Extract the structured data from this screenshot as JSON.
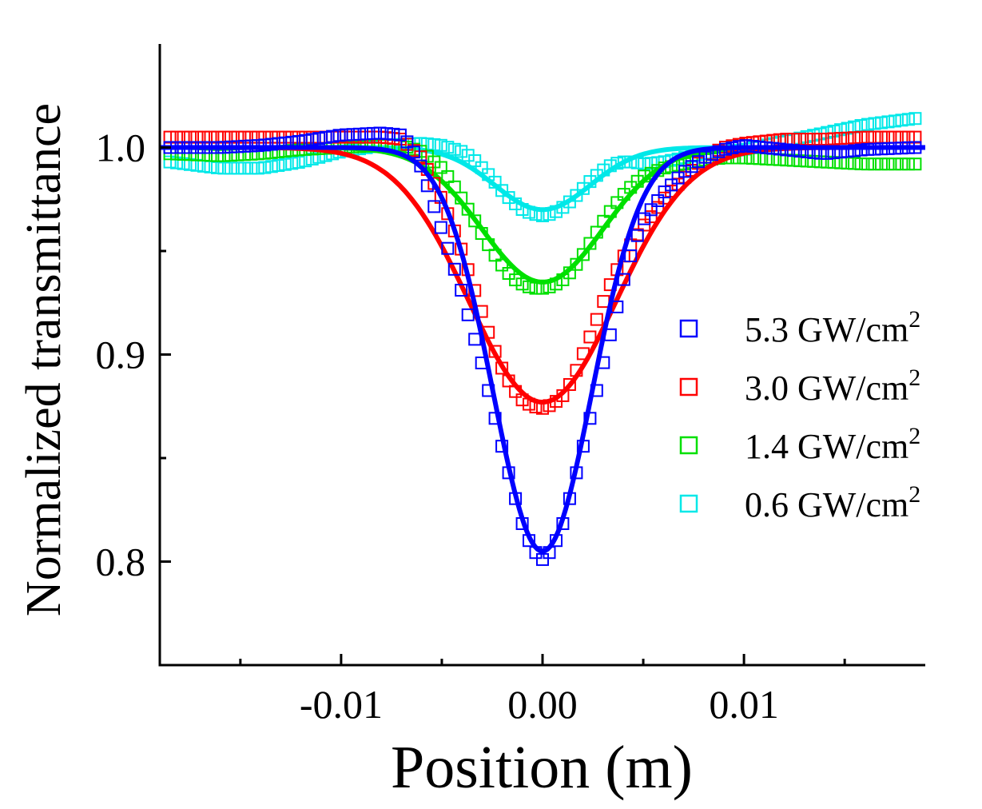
{
  "chart_data": {
    "type": "scatter",
    "title": "",
    "xlabel": "Position (m)",
    "ylabel": "Normalized transmittance",
    "xlim": [
      -0.019,
      0.019
    ],
    "ylim": [
      0.75,
      1.05
    ],
    "x_ticks": [
      {
        "value": -0.01,
        "label": "-0.01"
      },
      {
        "value": 0.0,
        "label": "0.00"
      },
      {
        "value": 0.01,
        "label": "0.01"
      }
    ],
    "y_ticks": [
      {
        "value": 0.8,
        "label": "0.8"
      },
      {
        "value": 0.9,
        "label": "0.9"
      },
      {
        "value": 1.0,
        "label": "1.0"
      }
    ],
    "x_minor_ticks": [
      -0.015,
      -0.005,
      0.005,
      0.015
    ],
    "y_minor_ticks": [
      0.85,
      0.95
    ],
    "grid": false,
    "legend_position": "right",
    "legend_unit": "GW/cm",
    "legend_unit_sup": "2",
    "series": [
      {
        "name": "5.3 GW/cm2",
        "label_value": "5.3",
        "color": "#0000ff",
        "points": [
          [
            -0.0185,
            1.0
          ],
          [
            -0.016,
            1.0
          ],
          [
            -0.014,
            1.001
          ],
          [
            -0.012,
            1.003
          ],
          [
            -0.01,
            1.006
          ],
          [
            -0.008,
            1.007
          ],
          [
            -0.007,
            1.006
          ],
          [
            -0.0065,
            1.0
          ],
          [
            -0.006,
            0.99
          ],
          [
            -0.0055,
            0.975
          ],
          [
            -0.005,
            0.96
          ],
          [
            -0.0045,
            0.945
          ],
          [
            -0.004,
            0.93
          ],
          [
            -0.0035,
            0.912
          ],
          [
            -0.003,
            0.895
          ],
          [
            -0.0025,
            0.875
          ],
          [
            -0.002,
            0.855
          ],
          [
            -0.0015,
            0.836
          ],
          [
            -0.001,
            0.818
          ],
          [
            -0.0005,
            0.806
          ],
          [
            0.0,
            0.801
          ],
          [
            0.0005,
            0.806
          ],
          [
            0.001,
            0.818
          ],
          [
            0.0015,
            0.836
          ],
          [
            0.002,
            0.855
          ],
          [
            0.0025,
            0.875
          ],
          [
            0.003,
            0.895
          ],
          [
            0.0035,
            0.915
          ],
          [
            0.004,
            0.935
          ],
          [
            0.0045,
            0.952
          ],
          [
            0.005,
            0.965
          ],
          [
            0.006,
            0.978
          ],
          [
            0.007,
            0.988
          ],
          [
            0.008,
            0.995
          ],
          [
            0.009,
            0.999
          ],
          [
            0.01,
            1.001
          ],
          [
            0.012,
            0.999
          ],
          [
            0.014,
            0.997
          ],
          [
            0.016,
            0.999
          ],
          [
            0.0185,
            1.0
          ]
        ],
        "fit_width": 0.0031,
        "fit_min": 0.805
      },
      {
        "name": "3.0 GW/cm2",
        "label_value": "3.0",
        "color": "#ff0000",
        "points": [
          [
            -0.0185,
            1.005
          ],
          [
            -0.016,
            1.005
          ],
          [
            -0.014,
            1.005
          ],
          [
            -0.012,
            1.005
          ],
          [
            -0.01,
            1.005
          ],
          [
            -0.008,
            1.005
          ],
          [
            -0.007,
            1.004
          ],
          [
            -0.006,
            0.995
          ],
          [
            -0.0055,
            0.985
          ],
          [
            -0.005,
            0.975
          ],
          [
            -0.0045,
            0.963
          ],
          [
            -0.004,
            0.95
          ],
          [
            -0.0035,
            0.935
          ],
          [
            -0.003,
            0.92
          ],
          [
            -0.0025,
            0.905
          ],
          [
            -0.002,
            0.893
          ],
          [
            -0.0015,
            0.884
          ],
          [
            -0.001,
            0.878
          ],
          [
            -0.0005,
            0.875
          ],
          [
            0.0,
            0.874
          ],
          [
            0.0005,
            0.876
          ],
          [
            0.001,
            0.88
          ],
          [
            0.0015,
            0.888
          ],
          [
            0.002,
            0.9
          ],
          [
            0.0025,
            0.912
          ],
          [
            0.003,
            0.925
          ],
          [
            0.0035,
            0.937
          ],
          [
            0.004,
            0.947
          ],
          [
            0.0045,
            0.955
          ],
          [
            0.005,
            0.962
          ],
          [
            0.0055,
            0.968
          ],
          [
            0.006,
            0.975
          ],
          [
            0.007,
            0.985
          ],
          [
            0.008,
            0.995
          ],
          [
            0.009,
            1.0
          ],
          [
            0.01,
            1.002
          ],
          [
            0.012,
            1.004
          ],
          [
            0.014,
            1.004
          ],
          [
            0.016,
            1.005
          ],
          [
            0.0185,
            1.005
          ]
        ],
        "fit_width": 0.0046,
        "fit_min": 0.877
      },
      {
        "name": "1.4 GW/cm2",
        "label_value": "1.4",
        "color": "#00e000",
        "points": [
          [
            -0.0185,
            0.997
          ],
          [
            -0.016,
            0.996
          ],
          [
            -0.014,
            0.997
          ],
          [
            -0.012,
            0.999
          ],
          [
            -0.01,
            1.0
          ],
          [
            -0.008,
            1.001
          ],
          [
            -0.007,
            1.001
          ],
          [
            -0.006,
            0.998
          ],
          [
            -0.005,
            0.99
          ],
          [
            -0.0045,
            0.983
          ],
          [
            -0.004,
            0.975
          ],
          [
            -0.0035,
            0.967
          ],
          [
            -0.003,
            0.958
          ],
          [
            -0.0025,
            0.95
          ],
          [
            -0.002,
            0.943
          ],
          [
            -0.0015,
            0.937
          ],
          [
            -0.001,
            0.934
          ],
          [
            -0.0005,
            0.932
          ],
          [
            0.0,
            0.932
          ],
          [
            0.0005,
            0.933
          ],
          [
            0.001,
            0.936
          ],
          [
            0.0015,
            0.941
          ],
          [
            0.002,
            0.948
          ],
          [
            0.0025,
            0.956
          ],
          [
            0.003,
            0.964
          ],
          [
            0.0035,
            0.971
          ],
          [
            0.004,
            0.977
          ],
          [
            0.0045,
            0.982
          ],
          [
            0.005,
            0.986
          ],
          [
            0.006,
            0.99
          ],
          [
            0.007,
            0.992
          ],
          [
            0.008,
            0.994
          ],
          [
            0.009,
            0.995
          ],
          [
            0.01,
            0.995
          ],
          [
            0.012,
            0.994
          ],
          [
            0.014,
            0.993
          ],
          [
            0.016,
            0.992
          ],
          [
            0.0185,
            0.992
          ]
        ],
        "fit_width": 0.0038,
        "fit_min": 0.935
      },
      {
        "name": "0.6 GW/cm2",
        "label_value": "0.6",
        "color": "#00e8e8",
        "points": [
          [
            -0.0185,
            0.993
          ],
          [
            -0.016,
            0.99
          ],
          [
            -0.014,
            0.99
          ],
          [
            -0.012,
            0.993
          ],
          [
            -0.01,
            0.998
          ],
          [
            -0.008,
            1.001
          ],
          [
            -0.006,
            1.002
          ],
          [
            -0.005,
            1.001
          ],
          [
            -0.004,
            0.998
          ],
          [
            -0.0035,
            0.995
          ],
          [
            -0.003,
            0.99
          ],
          [
            -0.0025,
            0.985
          ],
          [
            -0.002,
            0.979
          ],
          [
            -0.0015,
            0.974
          ],
          [
            -0.001,
            0.97
          ],
          [
            -0.0005,
            0.968
          ],
          [
            0.0,
            0.967
          ],
          [
            0.0005,
            0.968
          ],
          [
            0.001,
            0.971
          ],
          [
            0.0015,
            0.975
          ],
          [
            0.002,
            0.98
          ],
          [
            0.0025,
            0.985
          ],
          [
            0.003,
            0.989
          ],
          [
            0.0035,
            0.992
          ],
          [
            0.004,
            0.993
          ],
          [
            0.0045,
            0.993
          ],
          [
            0.005,
            0.992
          ],
          [
            0.006,
            0.993
          ],
          [
            0.007,
            0.995
          ],
          [
            0.008,
            0.997
          ],
          [
            0.01,
            0.999
          ],
          [
            0.012,
            1.003
          ],
          [
            0.014,
            1.007
          ],
          [
            0.016,
            1.011
          ],
          [
            0.0185,
            1.014
          ]
        ],
        "fit_width": 0.003,
        "fit_min": 0.97
      }
    ]
  }
}
